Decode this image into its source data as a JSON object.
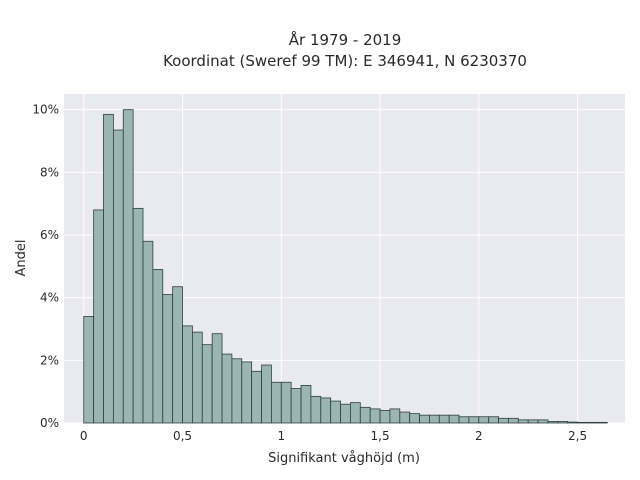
{
  "chart_data": {
    "type": "bar",
    "subtype": "histogram",
    "title_line1": "År 1979 - 2019",
    "title_line2": "Koordinat (Sweref 99 TM): E 346941, N 6230370",
    "xlabel": "Signifikant våghöjd (m)",
    "ylabel": "Andel",
    "bin_start": 0.0,
    "bin_width": 0.05,
    "values_percent": [
      3.4,
      6.8,
      9.85,
      9.35,
      10.0,
      6.85,
      5.8,
      4.9,
      4.1,
      4.35,
      3.1,
      2.9,
      2.5,
      2.85,
      2.2,
      2.05,
      1.95,
      1.65,
      1.85,
      1.3,
      1.3,
      1.1,
      1.2,
      0.85,
      0.8,
      0.7,
      0.6,
      0.65,
      0.5,
      0.45,
      0.4,
      0.45,
      0.35,
      0.3,
      0.25,
      0.25,
      0.25,
      0.25,
      0.2,
      0.2,
      0.2,
      0.2,
      0.15,
      0.15,
      0.1,
      0.1,
      0.1,
      0.05,
      0.05,
      0.03,
      0.02,
      0.02,
      0.02
    ],
    "xlim": [
      -0.1,
      2.74
    ],
    "ylim": [
      0,
      10.5
    ],
    "x_ticks": [
      0,
      0.5,
      1,
      1.5,
      2,
      2.5
    ],
    "x_tick_labels": [
      "0",
      "0,5",
      "1",
      "1,5",
      "2",
      "2,5"
    ],
    "y_ticks": [
      0,
      2,
      4,
      6,
      8,
      10
    ],
    "y_tick_labels": [
      "0%",
      "2%",
      "4%",
      "6%",
      "8%",
      "10%"
    ],
    "grid": true,
    "bar_color": "#9ab5b3",
    "bar_edge_color": "#2f3f3d",
    "plot_bg": "#e9e9f0",
    "grid_color": "#ffffff"
  }
}
